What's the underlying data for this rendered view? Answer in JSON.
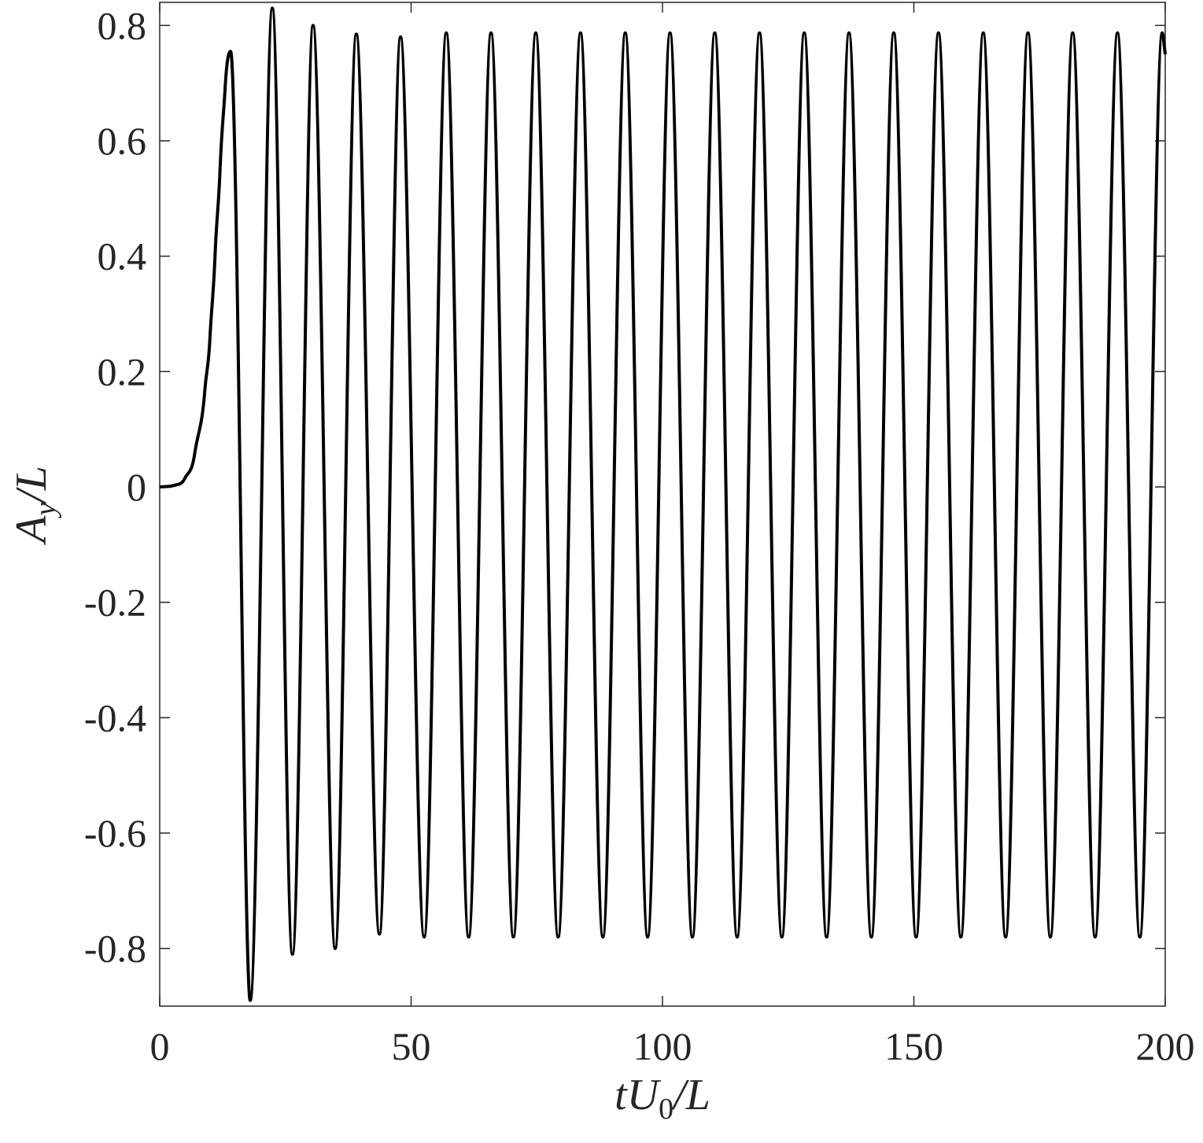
{
  "chart_data": {
    "type": "line",
    "xlabel": [
      "tU",
      "0",
      "/L"
    ],
    "ylabel": [
      "A",
      "y",
      "/L"
    ],
    "xlim": [
      0,
      200
    ],
    "xticks": [
      0,
      50,
      100,
      150,
      200
    ],
    "ylim": [
      -0.9,
      0.84
    ],
    "yticks": [
      -0.8,
      -0.6,
      -0.4,
      -0.2,
      0,
      0.2,
      0.4,
      0.6,
      0.8
    ],
    "grid": false,
    "series": [
      {
        "color": "#000000",
        "x": [
          0,
          3,
          5,
          7,
          9,
          10,
          11,
          12,
          13,
          14.1,
          16.0,
          18.0,
          20.3,
          22.4,
          24.4,
          26.4,
          28.5,
          30.5,
          32.7,
          34.9,
          37.0,
          39.1,
          41.4,
          43.7,
          45.8,
          47.9,
          50.2,
          52.6,
          54.8,
          57.0,
          59.22,
          61.45,
          63.67,
          65.9,
          68.12,
          70.35,
          72.57,
          74.8,
          77.02,
          79.25,
          81.47,
          83.7,
          85.92,
          88.15,
          90.37,
          92.6,
          94.82,
          97.05,
          99.27,
          101.5,
          103.72,
          105.95,
          108.17,
          110.4,
          112.62,
          114.85,
          117.07,
          119.3,
          121.52,
          123.75,
          125.97,
          128.2,
          130.42,
          132.65,
          134.87,
          137.1,
          139.32,
          141.55,
          143.77,
          146.0,
          148.22,
          150.45,
          152.67,
          154.9,
          157.12,
          159.35,
          161.57,
          163.8,
          166.02,
          168.25,
          170.47,
          172.7,
          174.92,
          177.15,
          179.37,
          181.6,
          183.82,
          186.05,
          188.27,
          190.5,
          192.72,
          194.95,
          197.17,
          199.4,
          200
        ],
        "values": [
          0,
          0.003,
          0.015,
          0.06,
          0.17,
          0.26,
          0.4,
          0.55,
          0.69,
          0.755,
          0,
          -0.89,
          0,
          0.83,
          0,
          -0.81,
          0,
          0.8,
          0,
          -0.8,
          0,
          0.785,
          0,
          -0.775,
          0,
          0.78,
          0,
          -0.78,
          0,
          0.787,
          0,
          -0.78,
          0,
          0.787,
          0,
          -0.78,
          0,
          0.787,
          0,
          -0.78,
          0,
          0.787,
          0,
          -0.78,
          0,
          0.787,
          0,
          -0.78,
          0,
          0.787,
          0,
          -0.78,
          0,
          0.787,
          0,
          -0.78,
          0,
          0.787,
          0,
          -0.78,
          0,
          0.787,
          0,
          -0.78,
          0,
          0.787,
          0,
          -0.78,
          0,
          0.787,
          0,
          -0.78,
          0,
          0.787,
          0,
          -0.78,
          0,
          0.787,
          0,
          -0.78,
          0,
          0.787,
          0,
          -0.78,
          0,
          0.787,
          0,
          -0.78,
          0,
          0.787,
          0,
          -0.78,
          0,
          0.787,
          0.75
        ]
      }
    ]
  }
}
